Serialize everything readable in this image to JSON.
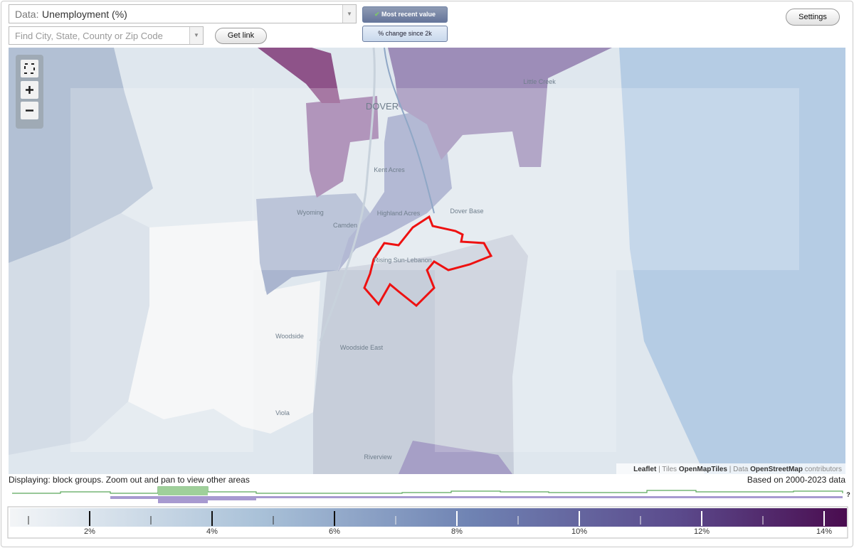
{
  "controls": {
    "data_prefix": "Data:",
    "data_value": "Unemployment (%)",
    "search_placeholder": "Find City, State, County or Zip Code",
    "get_link": "Get link",
    "most_recent": "Most recent value",
    "change": "% change since 2k",
    "settings": "Settings"
  },
  "map": {
    "labels": [
      "DOVER",
      "Little Creek",
      "Kent Acres",
      "Wyoming",
      "Camden",
      "Highland Acres",
      "Dover Base",
      "Rising Sun-Lebanon",
      "Woodside",
      "Woodside East",
      "Viola",
      "Riverview"
    ],
    "attribution": [
      "Leaflet",
      " | Tiles ",
      "OpenMapTiles",
      " | Data ",
      "OpenStreetMap",
      " contributors"
    ]
  },
  "status": {
    "left": "Displaying: block groups. Zoom out and pan to view other areas",
    "right": "Based on 2000-2023 data",
    "help": "?"
  },
  "legend": {
    "ticks": [
      "2%",
      "4%",
      "6%",
      "8%",
      "10%",
      "12%",
      "14%"
    ]
  }
}
